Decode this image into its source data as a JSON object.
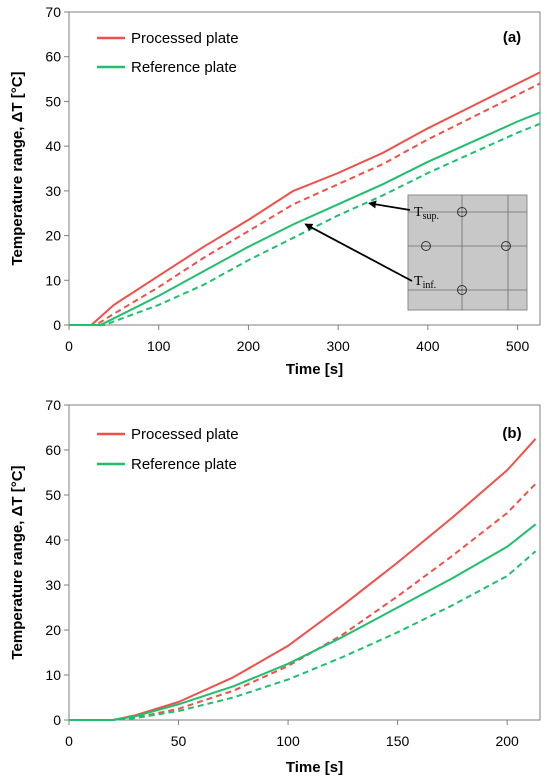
{
  "colors": {
    "processed": "#f0504a",
    "reference": "#1fbf6c",
    "inset_fill": "#c8c8c8"
  },
  "chart_data": [
    {
      "type": "line",
      "panel_label": "(a)",
      "xlabel": "Time [s]",
      "ylabel": "Temperature range, ΔT [°C]",
      "xlim": [
        0,
        525
      ],
      "ylim": [
        0,
        70
      ],
      "xticks": [
        0,
        100,
        200,
        300,
        400,
        500
      ],
      "yticks": [
        0,
        10,
        20,
        30,
        40,
        50,
        60,
        70
      ],
      "legend": [
        "Processed plate",
        "Reference plate"
      ],
      "legend_position": "top-left",
      "series": [
        {
          "name": "Processed plate",
          "sensor": "T_sup.",
          "style": "solid",
          "color": "processed",
          "x": [
            0,
            25,
            50,
            100,
            150,
            200,
            250,
            300,
            350,
            400,
            450,
            500,
            525
          ],
          "y": [
            0,
            0,
            4.5,
            11,
            17.5,
            23.5,
            30,
            34,
            38.5,
            44,
            49,
            54,
            56.5
          ]
        },
        {
          "name": "Processed plate",
          "sensor": "T_inf.",
          "style": "dashed",
          "color": "processed",
          "x": [
            0,
            30,
            50,
            100,
            150,
            200,
            250,
            300,
            350,
            400,
            450,
            500,
            525
          ],
          "y": [
            0,
            0,
            2.5,
            8.5,
            15,
            21,
            27,
            31.5,
            36,
            41.5,
            46.5,
            51.5,
            54
          ]
        },
        {
          "name": "Reference plate",
          "sensor": "T_sup.",
          "style": "solid",
          "color": "reference",
          "x": [
            0,
            35,
            50,
            100,
            150,
            200,
            250,
            300,
            350,
            400,
            450,
            500,
            525
          ],
          "y": [
            0,
            0,
            1.5,
            6.5,
            12,
            17.5,
            22.5,
            27,
            31.5,
            36.5,
            41,
            45.5,
            47.5
          ]
        },
        {
          "name": "Reference plate",
          "sensor": "T_inf.",
          "style": "dashed",
          "color": "reference",
          "x": [
            0,
            40,
            50,
            100,
            150,
            200,
            250,
            300,
            350,
            400,
            450,
            500,
            525
          ],
          "y": [
            0,
            0,
            0.8,
            4.5,
            9,
            14.5,
            19.5,
            24.5,
            29,
            34,
            38.5,
            43,
            45
          ]
        }
      ],
      "annotations": {
        "t_sup": {
          "main": "T",
          "sub": "sup.",
          "arrow_to": [
            330,
            27
          ]
        },
        "t_inf": {
          "main": "T",
          "sub": "inf.",
          "arrow_to": [
            260,
            23
          ]
        }
      }
    },
    {
      "type": "line",
      "panel_label": "(b)",
      "xlabel": "Time [s]",
      "ylabel": "Temperature range, ΔT [°C]",
      "xlim": [
        0,
        215
      ],
      "ylim": [
        0,
        70
      ],
      "xticks": [
        0,
        50,
        100,
        150,
        200
      ],
      "yticks": [
        0,
        10,
        20,
        30,
        40,
        50,
        60,
        70
      ],
      "legend": [
        "Processed plate",
        "Reference plate"
      ],
      "legend_position": "top-left",
      "series": [
        {
          "name": "Processed plate",
          "style": "solid",
          "color": "processed",
          "x": [
            0,
            20,
            30,
            50,
            75,
            100,
            125,
            150,
            175,
            200,
            213
          ],
          "y": [
            0,
            0,
            1,
            4,
            9.5,
            16.5,
            25.5,
            35,
            45,
            55.5,
            62.5
          ]
        },
        {
          "name": "Processed plate",
          "style": "dashed",
          "color": "processed",
          "x": [
            0,
            20,
            30,
            50,
            75,
            100,
            125,
            150,
            175,
            200,
            213
          ],
          "y": [
            0,
            0,
            0.5,
            2.5,
            6.5,
            12,
            19,
            27.5,
            36.5,
            46,
            52.5
          ]
        },
        {
          "name": "Reference plate",
          "style": "solid",
          "color": "reference",
          "x": [
            0,
            20,
            30,
            50,
            75,
            100,
            125,
            150,
            175,
            200,
            213
          ],
          "y": [
            0,
            0,
            0.8,
            3.5,
            7.5,
            12.5,
            18.5,
            25,
            31.5,
            38.5,
            43.5
          ]
        },
        {
          "name": "Reference plate",
          "style": "dashed",
          "color": "reference",
          "x": [
            0,
            20,
            30,
            50,
            75,
            100,
            125,
            150,
            175,
            200,
            213
          ],
          "y": [
            0,
            0,
            0.4,
            2,
            5,
            9,
            14,
            19.5,
            25.5,
            32,
            37.5
          ]
        }
      ]
    }
  ]
}
